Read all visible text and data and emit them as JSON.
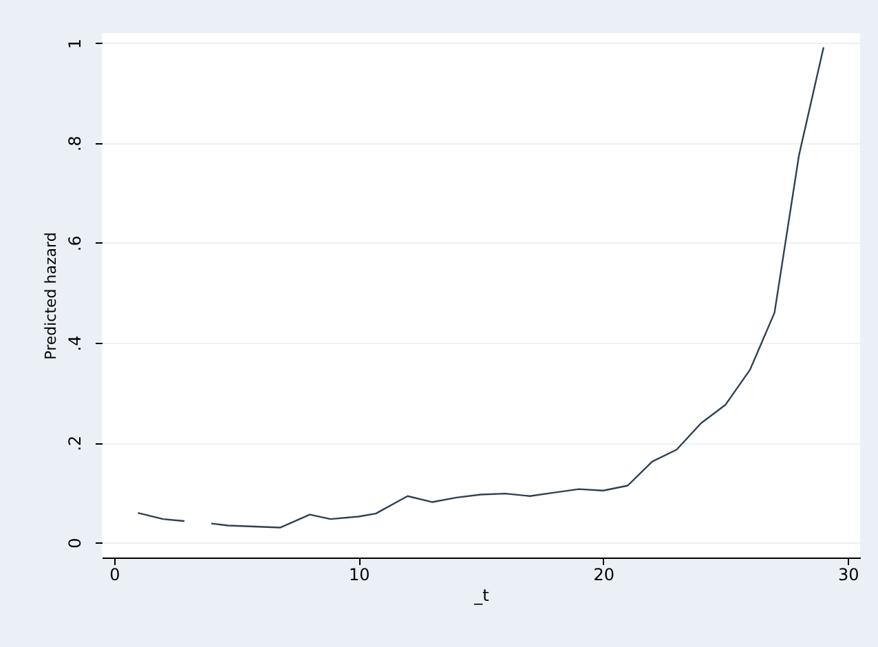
{
  "chart_data": {
    "type": "line",
    "xlabel": "_t",
    "ylabel": "Predicted hazard",
    "x": [
      1,
      2,
      2.85,
      3.5,
      4,
      4.66,
      6.8,
      8,
      8.85,
      10,
      10.7,
      12,
      13,
      14,
      15,
      16,
      17,
      18,
      19,
      20,
      21,
      22,
      23,
      24,
      25,
      26,
      27,
      28,
      29
    ],
    "series": [
      {
        "color": "#2f4050",
        "values": [
          0.059,
          0.047,
          0.043,
          null,
          0.038,
          0.034,
          0.03,
          0.056,
          0.047,
          0.052,
          0.058,
          0.093,
          0.081,
          0.09,
          0.096,
          0.098,
          0.093,
          0.1,
          0.107,
          0.104,
          0.114,
          0.162,
          0.186,
          0.239,
          0.276,
          0.346,
          0.46,
          0.775,
          0.99
        ]
      }
    ],
    "xlim": [
      -0.5,
      30.5
    ],
    "xticks": [
      0,
      10,
      20,
      30
    ],
    "ylim": [
      -0.03,
      1.02
    ],
    "yticks": [
      0,
      {
        "value": 0.2,
        "label": ".2"
      },
      {
        "value": 0.4,
        "label": ".4"
      },
      {
        "value": 0.6,
        "label": ".6"
      },
      {
        "value": 0.8,
        "label": ".8"
      },
      1
    ],
    "grid": "y",
    "marker": "none",
    "line_style": "solid"
  }
}
